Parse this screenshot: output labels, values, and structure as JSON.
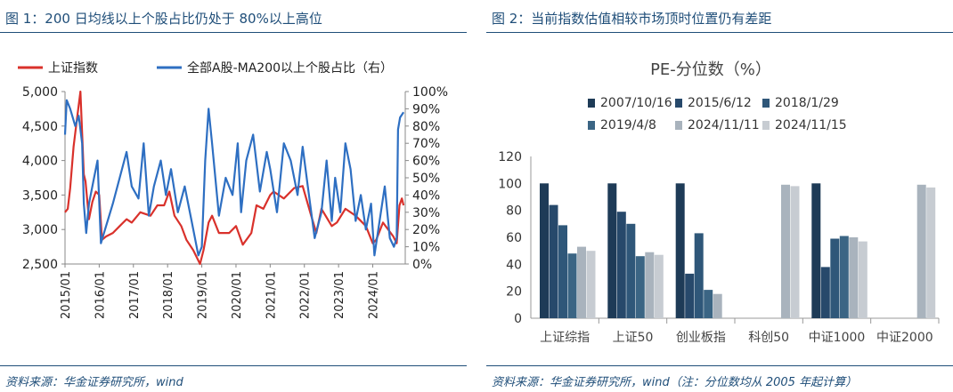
{
  "figure1": {
    "title": "图 1：200 日均线以上个股占比仍处于 80%以上高位",
    "source": "资料来源：华金证券研究所，wind",
    "chart_data": {
      "type": "line",
      "legend": [
        "上证指数",
        "全部A股-MA200以上个股占比（右）"
      ],
      "legend_placement": "top",
      "x_ticks": [
        "2015/01",
        "2016/01",
        "2017/01",
        "2018/01",
        "2019/01",
        "2020/01",
        "2021/01",
        "2022/01",
        "2023/01",
        "2024/01"
      ],
      "y_left_ticks": [
        "5,000",
        "4,500",
        "4,000",
        "3,500",
        "3,000",
        "2,500"
      ],
      "y_right_ticks": [
        "100%",
        "90%",
        "80%",
        "70%",
        "60%",
        "50%",
        "40%",
        "30%",
        "20%",
        "10%",
        "0%"
      ],
      "ylim_left": [
        2500,
        5000
      ],
      "ylim_right": [
        0,
        100
      ],
      "xlim": [
        2015.0,
        2024.95
      ],
      "series": [
        {
          "name": "上证指数",
          "color": "#d9312b",
          "axis": "left",
          "x": [
            2015.0,
            2015.08,
            2015.15,
            2015.25,
            2015.35,
            2015.45,
            2015.5,
            2015.55,
            2015.6,
            2015.7,
            2015.8,
            2015.9,
            2016.0,
            2016.08,
            2016.2,
            2016.4,
            2016.6,
            2016.8,
            2016.95,
            2017.2,
            2017.5,
            2017.7,
            2017.9,
            2018.05,
            2018.2,
            2018.4,
            2018.55,
            2018.75,
            2018.95,
            2019.05,
            2019.2,
            2019.3,
            2019.5,
            2019.8,
            2020.0,
            2020.2,
            2020.45,
            2020.6,
            2020.8,
            2021.0,
            2021.1,
            2021.4,
            2021.7,
            2021.95,
            2022.2,
            2022.35,
            2022.5,
            2022.8,
            2022.95,
            2023.2,
            2023.5,
            2023.8,
            2024.0,
            2024.1,
            2024.3,
            2024.6,
            2024.7,
            2024.78,
            2024.85,
            2024.9
          ],
          "y": [
            3250,
            3300,
            3600,
            4200,
            4600,
            5000,
            4400,
            3800,
            3700,
            3150,
            3400,
            3550,
            3500,
            2850,
            2900,
            2950,
            3050,
            3150,
            3100,
            3250,
            3200,
            3350,
            3350,
            3550,
            3200,
            3050,
            2850,
            2700,
            2500,
            2700,
            3100,
            3200,
            2950,
            2950,
            3050,
            2780,
            2950,
            3350,
            3300,
            3500,
            3550,
            3450,
            3600,
            3630,
            3200,
            2950,
            3300,
            3050,
            3100,
            3300,
            3200,
            3050,
            2800,
            2850,
            3100,
            2900,
            2800,
            3350,
            3450,
            3350
          ]
        },
        {
          "name": "全部A股-MA200以上个股占比（右）",
          "color": "#2e6fc2",
          "axis": "right",
          "x": [
            2015.0,
            2015.05,
            2015.15,
            2015.3,
            2015.4,
            2015.5,
            2015.55,
            2015.62,
            2015.7,
            2015.85,
            2015.95,
            2016.05,
            2016.2,
            2016.4,
            2016.6,
            2016.8,
            2016.95,
            2017.15,
            2017.3,
            2017.45,
            2017.6,
            2017.8,
            2017.95,
            2018.1,
            2018.3,
            2018.5,
            2018.7,
            2018.9,
            2019.0,
            2019.1,
            2019.2,
            2019.3,
            2019.5,
            2019.7,
            2019.9,
            2020.05,
            2020.15,
            2020.3,
            2020.5,
            2020.7,
            2020.9,
            2021.0,
            2021.2,
            2021.4,
            2021.6,
            2021.8,
            2021.95,
            2022.1,
            2022.3,
            2022.5,
            2022.65,
            2022.8,
            2022.9,
            2023.05,
            2023.2,
            2023.35,
            2023.5,
            2023.65,
            2023.8,
            2023.95,
            2024.05,
            2024.2,
            2024.35,
            2024.5,
            2024.62,
            2024.7,
            2024.74,
            2024.8,
            2024.9
          ],
          "y": [
            75,
            95,
            90,
            80,
            86,
            70,
            35,
            18,
            35,
            50,
            60,
            12,
            22,
            35,
            50,
            65,
            45,
            38,
            70,
            28,
            45,
            60,
            40,
            55,
            30,
            45,
            25,
            5,
            10,
            60,
            90,
            70,
            28,
            50,
            40,
            70,
            30,
            60,
            75,
            42,
            65,
            55,
            30,
            70,
            60,
            40,
            68,
            45,
            15,
            30,
            60,
            25,
            50,
            30,
            70,
            55,
            25,
            40,
            20,
            35,
            5,
            25,
            45,
            15,
            10,
            15,
            78,
            85,
            88
          ]
        }
      ]
    }
  },
  "figure2": {
    "title": "图 2：当前指数估值相较市场顶时位置仍有差距",
    "source": "资料来源：华金证券研究所，wind（注：分位数均从 2005 年起计算）",
    "chart_data": {
      "type": "bar",
      "title": "PE-分位数（%）",
      "legend_placement": "top",
      "categories": [
        "上证综指",
        "上证50",
        "创业板指",
        "科创50",
        "中证1000",
        "中证2000"
      ],
      "ylim": [
        0,
        120
      ],
      "y_ticks": [
        "120",
        "100",
        "80",
        "60",
        "40",
        "20",
        "0"
      ],
      "series": [
        {
          "name": "2007/10/16",
          "color": "#1e3b57",
          "values": [
            100,
            100,
            100,
            null,
            100,
            null
          ]
        },
        {
          "name": "2015/6/12",
          "color": "#27496b",
          "values": [
            84,
            79,
            33,
            null,
            38,
            null
          ]
        },
        {
          "name": "2018/1/29",
          "color": "#2f5779",
          "values": [
            69,
            70,
            63,
            null,
            59,
            null
          ]
        },
        {
          "name": "2019/4/8",
          "color": "#3b6584",
          "values": [
            48,
            46,
            21,
            null,
            61,
            null
          ]
        },
        {
          "name": "2024/11/11",
          "color": "#a9b3bd",
          "values": [
            53,
            49,
            18,
            99,
            60,
            99
          ]
        },
        {
          "name": "2024/11/15",
          "color": "#c7ccd2",
          "values": [
            50,
            47,
            null,
            98,
            57,
            97
          ]
        }
      ]
    }
  }
}
